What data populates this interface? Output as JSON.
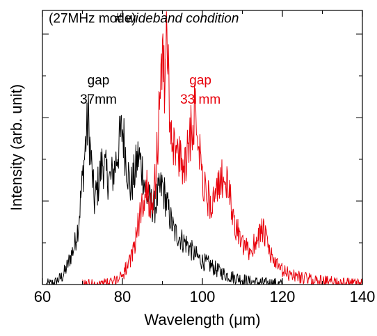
{
  "chart_data": {
    "type": "line",
    "xlabel": "Wavelength (μm)",
    "ylabel": "Intensity (arb. unit)",
    "xlim": [
      60,
      140
    ],
    "ylim": [
      0,
      1
    ],
    "x_ticks": [
      60,
      80,
      100,
      120,
      140
    ],
    "y_ticks_labeled": false,
    "grid": false,
    "annotations": [
      {
        "text": "(27MHz mode)",
        "x": 72.5,
        "y": 0.955,
        "style": "normal",
        "color": "#000000"
      },
      {
        "text": "# wideband condition",
        "x": 93.6,
        "y": 0.955,
        "style": "italic",
        "color": "#000000"
      },
      {
        "text": "gap",
        "x": 74,
        "y": 0.73,
        "style": "normal",
        "color": "#000000"
      },
      {
        "text": "37mm",
        "x": 74,
        "y": 0.66,
        "style": "normal",
        "color": "#000000"
      },
      {
        "text": "gap",
        "x": 99.5,
        "y": 0.73,
        "style": "normal",
        "color": "#e8000b"
      },
      {
        "text": "33 mm",
        "x": 99.5,
        "y": 0.66,
        "style": "normal",
        "color": "#e8000b"
      }
    ],
    "series": [
      {
        "color": "#000000",
        "points": [
          [
            61,
            0.0
          ],
          [
            63,
            0.005
          ],
          [
            65,
            0.03
          ],
          [
            66,
            0.06
          ],
          [
            67,
            0.1
          ],
          [
            68,
            0.14
          ],
          [
            69,
            0.22
          ],
          [
            70,
            0.38
          ],
          [
            71,
            0.55
          ],
          [
            71.5,
            0.6
          ],
          [
            72,
            0.48
          ],
          [
            73,
            0.3
          ],
          [
            74,
            0.37
          ],
          [
            75,
            0.45
          ],
          [
            76,
            0.4
          ],
          [
            77,
            0.38
          ],
          [
            78,
            0.42
          ],
          [
            79,
            0.5
          ],
          [
            80,
            0.57
          ],
          [
            81,
            0.45
          ],
          [
            82,
            0.35
          ],
          [
            83,
            0.4
          ],
          [
            84,
            0.47
          ],
          [
            85,
            0.42
          ],
          [
            86,
            0.32
          ],
          [
            87,
            0.3
          ],
          [
            88,
            0.28
          ],
          [
            89,
            0.33
          ],
          [
            90,
            0.36
          ],
          [
            91,
            0.3
          ],
          [
            92,
            0.24
          ],
          [
            93,
            0.19
          ],
          [
            94,
            0.18
          ],
          [
            95,
            0.16
          ],
          [
            96,
            0.15
          ],
          [
            97,
            0.13
          ],
          [
            98,
            0.11
          ],
          [
            100,
            0.085
          ],
          [
            102,
            0.07
          ],
          [
            104,
            0.05
          ],
          [
            106,
            0.035
          ],
          [
            108,
            0.025
          ],
          [
            110,
            0.02
          ],
          [
            112,
            0.01
          ],
          [
            114,
            0.008
          ],
          [
            116,
            0.005
          ],
          [
            118,
            0.004
          ],
          [
            120,
            0.0
          ]
        ]
      },
      {
        "color": "#e8000b",
        "points": [
          [
            70,
            0.0
          ],
          [
            76,
            0.003
          ],
          [
            78,
            0.01
          ],
          [
            80,
            0.04
          ],
          [
            82,
            0.08
          ],
          [
            83,
            0.15
          ],
          [
            84,
            0.22
          ],
          [
            85,
            0.3
          ],
          [
            86,
            0.35
          ],
          [
            87,
            0.3
          ],
          [
            88,
            0.34
          ],
          [
            89,
            0.55
          ],
          [
            89.5,
            0.78
          ],
          [
            90,
            0.85
          ],
          [
            90.5,
            0.7
          ],
          [
            91,
            0.98
          ],
          [
            91.5,
            0.75
          ],
          [
            92,
            0.6
          ],
          [
            93,
            0.5
          ],
          [
            94,
            0.46
          ],
          [
            95,
            0.43
          ],
          [
            96,
            0.47
          ],
          [
            97,
            0.56
          ],
          [
            98,
            0.63
          ],
          [
            99,
            0.56
          ],
          [
            100,
            0.4
          ],
          [
            101,
            0.32
          ],
          [
            102,
            0.3
          ],
          [
            103,
            0.31
          ],
          [
            104,
            0.34
          ],
          [
            105,
            0.4
          ],
          [
            106,
            0.37
          ],
          [
            107,
            0.3
          ],
          [
            108,
            0.23
          ],
          [
            110,
            0.14
          ],
          [
            112,
            0.12
          ],
          [
            113,
            0.15
          ],
          [
            114,
            0.18
          ],
          [
            115,
            0.2
          ],
          [
            116,
            0.16
          ],
          [
            117,
            0.11
          ],
          [
            119,
            0.06
          ],
          [
            121,
            0.04
          ],
          [
            124,
            0.03
          ],
          [
            128,
            0.015
          ],
          [
            132,
            0.01
          ],
          [
            136,
            0.005
          ],
          [
            140,
            0.0
          ]
        ]
      }
    ]
  }
}
